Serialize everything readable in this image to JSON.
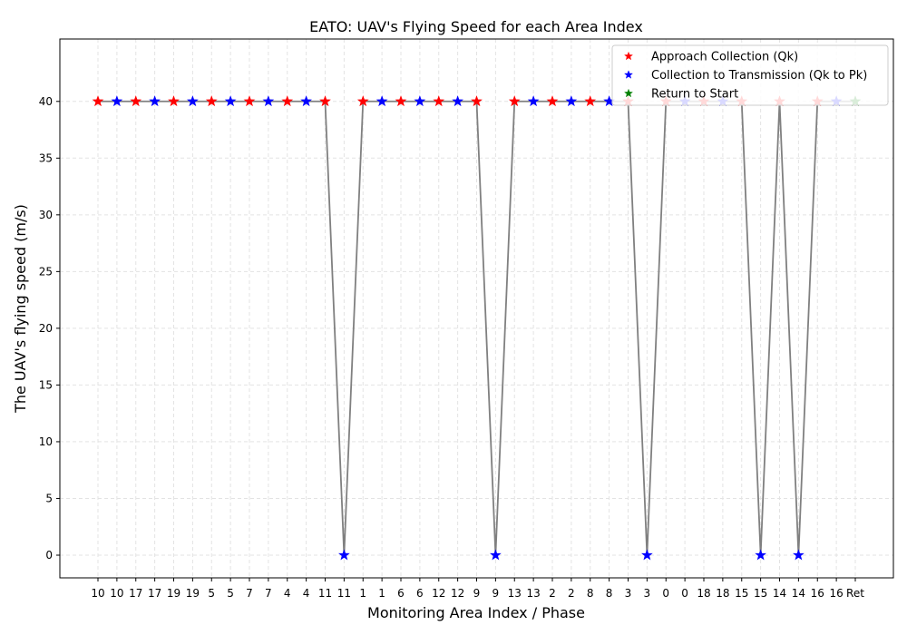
{
  "chart_data": {
    "type": "line",
    "title": "EATO: UAV's Flying Speed for each Area Index",
    "xlabel": "Monitoring Area Index / Phase",
    "ylabel": "The UAV's flying speed (m/s)",
    "ylim": [
      -2,
      45.5
    ],
    "yticks": [
      0,
      5,
      10,
      15,
      20,
      25,
      30,
      35,
      40
    ],
    "grid": true,
    "legend_position": "top-right",
    "categories": [
      "10",
      "10",
      "17",
      "17",
      "19",
      "19",
      "5",
      "5",
      "7",
      "7",
      "4",
      "4",
      "11",
      "11",
      "1",
      "1",
      "6",
      "6",
      "12",
      "12",
      "9",
      "9",
      "13",
      "13",
      "2",
      "2",
      "8",
      "8",
      "3",
      "3",
      "0",
      "0",
      "18",
      "18",
      "15",
      "15",
      "14",
      "14",
      "16",
      "16",
      "Ret"
    ],
    "values": [
      40,
      40,
      40,
      40,
      40,
      40,
      40,
      40,
      40,
      40,
      40,
      40,
      40,
      0,
      40,
      40,
      40,
      40,
      40,
      40,
      40,
      0,
      40,
      40,
      40,
      40,
      40,
      40,
      40,
      0,
      40,
      40,
      40,
      40,
      40,
      0,
      40,
      0,
      40,
      40,
      40
    ],
    "phase_index": [
      0,
      1,
      0,
      1,
      0,
      1,
      0,
      1,
      0,
      1,
      0,
      1,
      0,
      1,
      0,
      1,
      0,
      1,
      0,
      1,
      0,
      1,
      0,
      1,
      0,
      1,
      0,
      1,
      0,
      1,
      0,
      1,
      0,
      1,
      0,
      1,
      0,
      1,
      0,
      1,
      2
    ],
    "series": [
      {
        "name": "Approach Collection (Qk)",
        "color": "#ff0000",
        "marker": "star"
      },
      {
        "name": "Collection to Transmission (Qk to Pk)",
        "color": "#0000ff",
        "marker": "star"
      },
      {
        "name": "Return to Start",
        "color": "#008000",
        "marker": "star"
      }
    ],
    "line_color": "#808080"
  }
}
